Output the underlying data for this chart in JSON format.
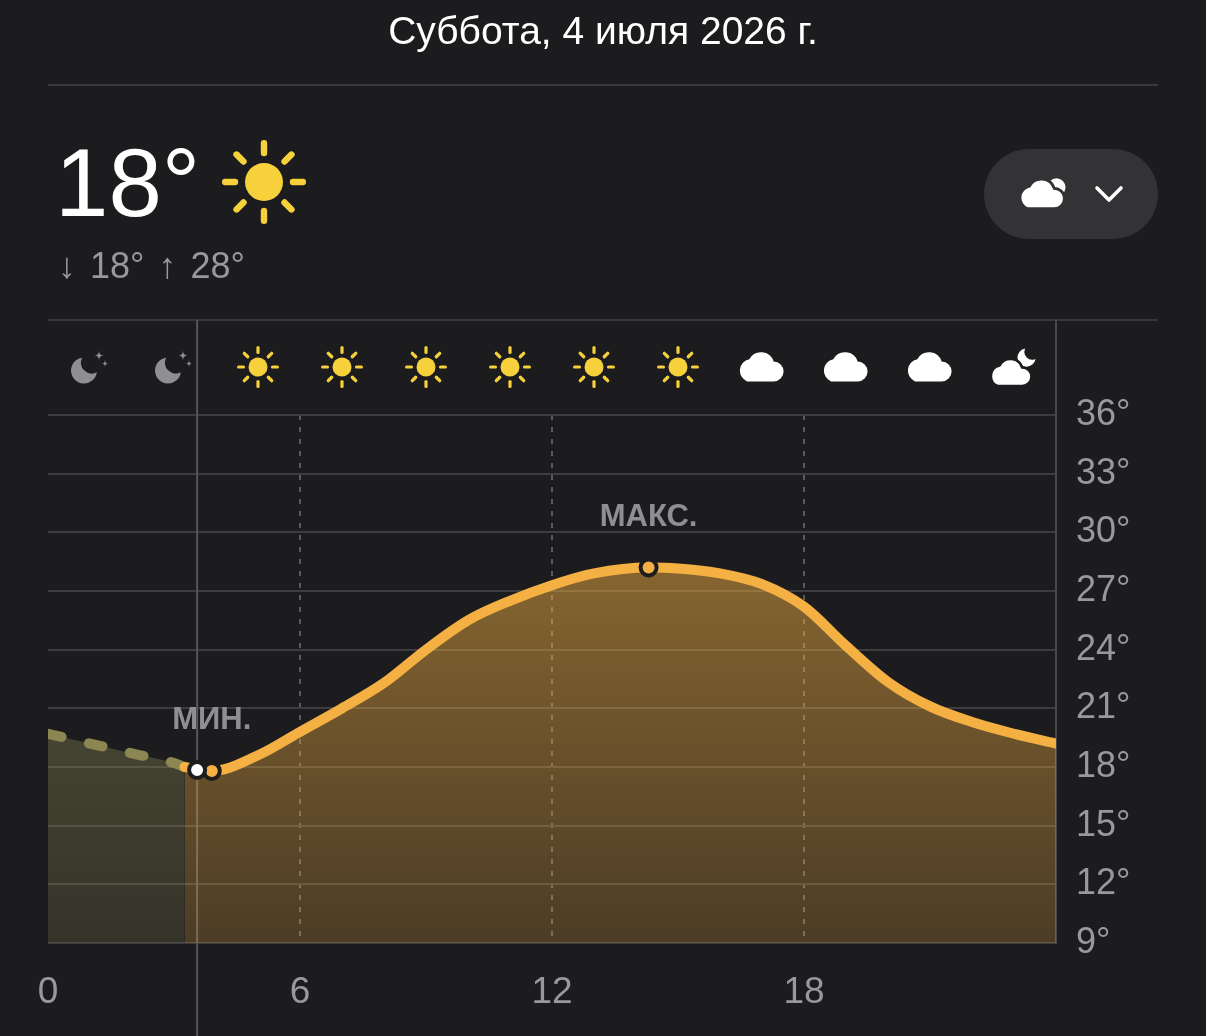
{
  "chart_data": {
    "type": "area",
    "title": "Суббота, 4 июля 2026 г.",
    "annotations": [
      "18°",
      "↓ 18° ↑ 28°",
      {
        "text": "МИН.",
        "x": 3.9,
        "y": 17.8
      },
      {
        "text": "МАКС.",
        "x": 14.3,
        "y": 28.2
      }
    ],
    "series": [
      {
        "color": "#8c8752",
        "line_style": "dashed",
        "x": [
          0,
          1,
          2,
          3,
          3.25
        ],
        "values": [
          19.7,
          19.2,
          18.7,
          18.2,
          18.0
        ]
      },
      {
        "color": "#f4b042",
        "x": [
          3.25,
          3.9,
          5,
          6,
          7,
          8,
          9,
          10,
          11,
          12,
          13,
          14.3,
          15,
          16,
          17,
          18,
          19,
          20,
          21,
          22,
          23,
          24
        ],
        "values": [
          18.0,
          17.8,
          18.6,
          19.8,
          21.0,
          22.3,
          24.0,
          25.5,
          26.5,
          27.3,
          27.9,
          28.2,
          28.15,
          27.9,
          27.35,
          26.2,
          24.2,
          22.35,
          21.1,
          20.3,
          19.7,
          19.2
        ]
      },
      {
        "type": "scatter",
        "color": "#ffffff",
        "x": [
          3.55
        ],
        "values": [
          17.85
        ]
      }
    ],
    "xlim": [
      0,
      24
    ],
    "xticks": [
      0,
      6,
      12,
      18
    ],
    "ylim": [
      9,
      36
    ],
    "yticks": [
      {
        "value": 9,
        "label": "9°"
      },
      {
        "value": 12,
        "label": "12°"
      },
      {
        "value": 15,
        "label": "15°"
      },
      {
        "value": 18,
        "label": "18°"
      },
      {
        "value": 21,
        "label": "21°"
      },
      {
        "value": 24,
        "label": "24°"
      },
      {
        "value": 27,
        "label": "27°"
      },
      {
        "value": 30,
        "label": "30°"
      },
      {
        "value": 33,
        "label": "33°"
      },
      {
        "value": 36,
        "label": "36°"
      }
    ],
    "ref_lines": [
      {
        "axis": "x",
        "value": 3.55,
        "color": "#55555a"
      }
    ],
    "grid": true
  }
}
